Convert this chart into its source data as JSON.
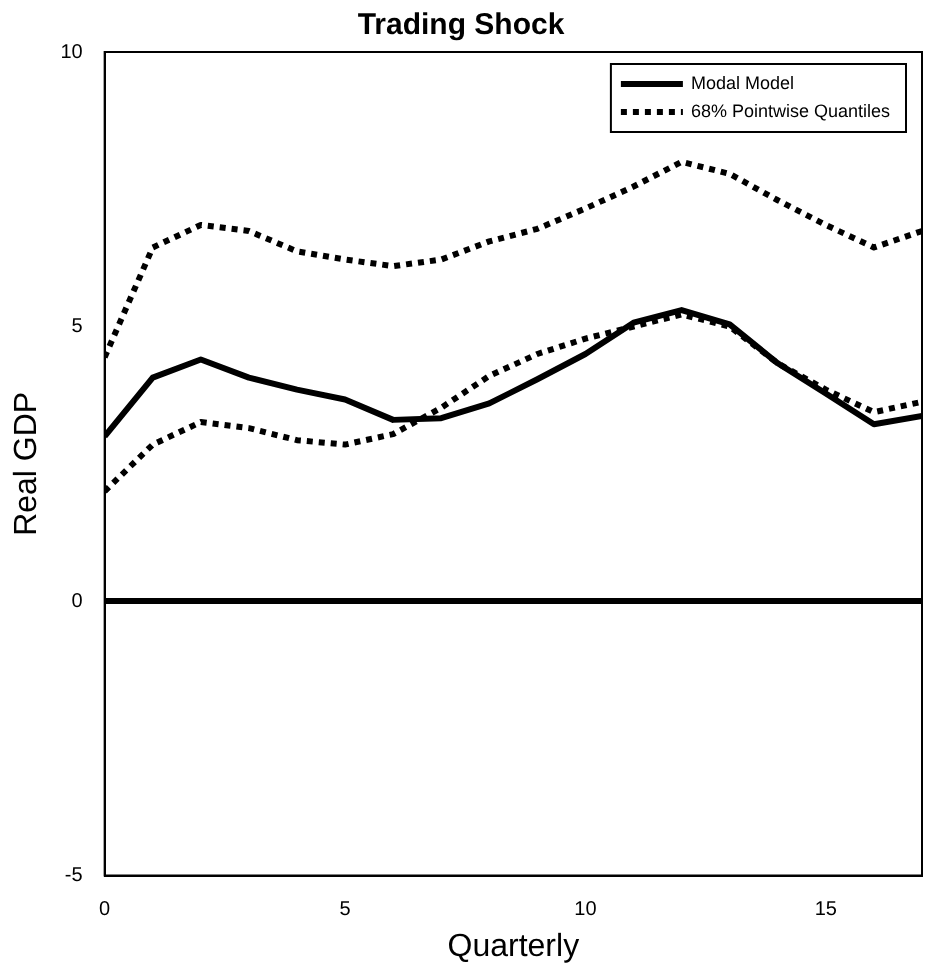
{
  "chart_data": {
    "type": "line",
    "title": "Trading Shock",
    "xlabel": "Quarterly",
    "ylabel": "Real GDP",
    "x": [
      0,
      1,
      2,
      3,
      4,
      5,
      6,
      7,
      8,
      9,
      10,
      11,
      12,
      13,
      14,
      15,
      16,
      17
    ],
    "xlim": [
      0,
      17
    ],
    "xticks": [
      0,
      5,
      10,
      15
    ],
    "ylim": [
      -5,
      10
    ],
    "yticks": [
      -5,
      0,
      5,
      10
    ],
    "grid": false,
    "legend": "top right",
    "marker": "none",
    "series": [
      {
        "name": "Modal Model",
        "color": "#000000",
        "line_style": "solid",
        "values": [
          3.0,
          4.07,
          4.4,
          4.07,
          3.85,
          3.67,
          3.3,
          3.33,
          3.6,
          4.04,
          4.5,
          5.07,
          5.3,
          5.04,
          4.33,
          3.78,
          3.22,
          3.37
        ]
      },
      {
        "name": "68% Pointwise Quantiles",
        "color": "#000000",
        "line_style": "dotted",
        "values": [
          4.44,
          6.44,
          6.85,
          6.74,
          6.37,
          6.22,
          6.1,
          6.22,
          6.55,
          6.78,
          7.15,
          7.55,
          8.0,
          7.78,
          7.3,
          6.85,
          6.44,
          6.74
        ]
      },
      {
        "color": "#000000",
        "line_style": "dotted",
        "values": [
          2.0,
          2.85,
          3.26,
          3.15,
          2.93,
          2.85,
          3.04,
          3.52,
          4.1,
          4.5,
          4.78,
          5.0,
          5.22,
          5.0,
          4.33,
          3.85,
          3.44,
          3.63
        ]
      }
    ],
    "ref_lines": [
      {
        "axis": "y",
        "value": 0,
        "color": "#000000",
        "line_style": "solid"
      }
    ]
  }
}
